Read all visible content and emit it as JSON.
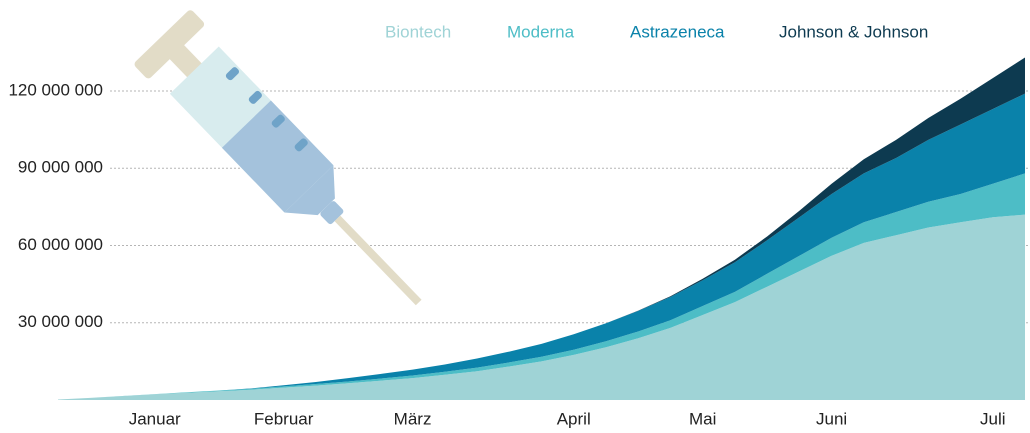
{
  "chart_data": {
    "type": "stacked-area",
    "categories": [
      null,
      null,
      null,
      "Januar",
      null,
      null,
      null,
      "Februar",
      null,
      null,
      null,
      "März",
      null,
      null,
      null,
      null,
      "April",
      null,
      null,
      null,
      "Mai",
      null,
      null,
      null,
      "Juni",
      null,
      null,
      null,
      null,
      "Juli",
      null
    ],
    "series": [
      {
        "name": "Biontech",
        "color": "#9fd3d6",
        "values": [
          200000.0,
          800000.0,
          1500000.0,
          2200000.0,
          2800000.0,
          3400000.0,
          4000000.0,
          4800000.0,
          5600000.0,
          6500000.0,
          7500000.0,
          8500000.0,
          9800000.0,
          11200000.0,
          13000000.0,
          15000000.0,
          17500000.0,
          20500000.0,
          24000000.0,
          28000000.0,
          33000000.0,
          38000000.0,
          44000000.0,
          50000000.0,
          56000000.0,
          61000000.0,
          64000000.0,
          67000000.0,
          69000000.0,
          71000000.0,
          72000000.0
        ]
      },
      {
        "name": "Moderna",
        "color": "#4dbdc6",
        "values": [
          0,
          0,
          50000.0,
          100000.0,
          200000.0,
          300000.0,
          400000.0,
          500000.0,
          600000.0,
          700000.0,
          800000.0,
          1000000.0,
          1200000.0,
          1400000.0,
          1600000.0,
          1800000.0,
          2000000.0,
          2300000.0,
          2600000.0,
          3000000.0,
          3500000.0,
          4000000.0,
          5000000.0,
          6000000.0,
          7000000.0,
          8000000.0,
          9000000.0,
          10000000.0,
          11000000.0,
          13000000.0,
          16000000.0
        ]
      },
      {
        "name": "Astrazeneca",
        "color": "#0a82aa",
        "values": [
          0,
          0,
          0,
          0,
          0,
          0,
          100000.0,
          400000.0,
          800000.0,
          1300000.0,
          1800000.0,
          2300000.0,
          2800000.0,
          3500000.0,
          4200000.0,
          5000000.0,
          6000000.0,
          7000000.0,
          8000000.0,
          9000000.0,
          10000000.0,
          11500000.0,
          13000000.0,
          15000000.0,
          17000000.0,
          19000000.0,
          21000000.0,
          24000000.0,
          27000000.0,
          29000000.0,
          31000000.0
        ]
      },
      {
        "name": "Johnson & Johnson",
        "color": "#0d3a50",
        "values": [
          0,
          0,
          0,
          0,
          0,
          0,
          0,
          0,
          0,
          0,
          0,
          0,
          0,
          0,
          0,
          0,
          0,
          0,
          100000.0,
          300000.0,
          600000.0,
          1000000.0,
          1500000.0,
          2500000.0,
          4000000.0,
          5500000.0,
          7000000.0,
          8500000.0,
          10000000.0,
          12000000.0,
          14000000.0
        ]
      }
    ],
    "ylim": [
      0,
      140000000
    ],
    "yticks": [
      {
        "value": 30000000,
        "label": "30 000 000"
      },
      {
        "value": 60000000,
        "label": "60 000 000"
      },
      {
        "value": 90000000,
        "label": "90 000 000"
      },
      {
        "value": 120000000,
        "label": "120 000 000"
      }
    ],
    "grid": true,
    "legend": "top"
  }
}
